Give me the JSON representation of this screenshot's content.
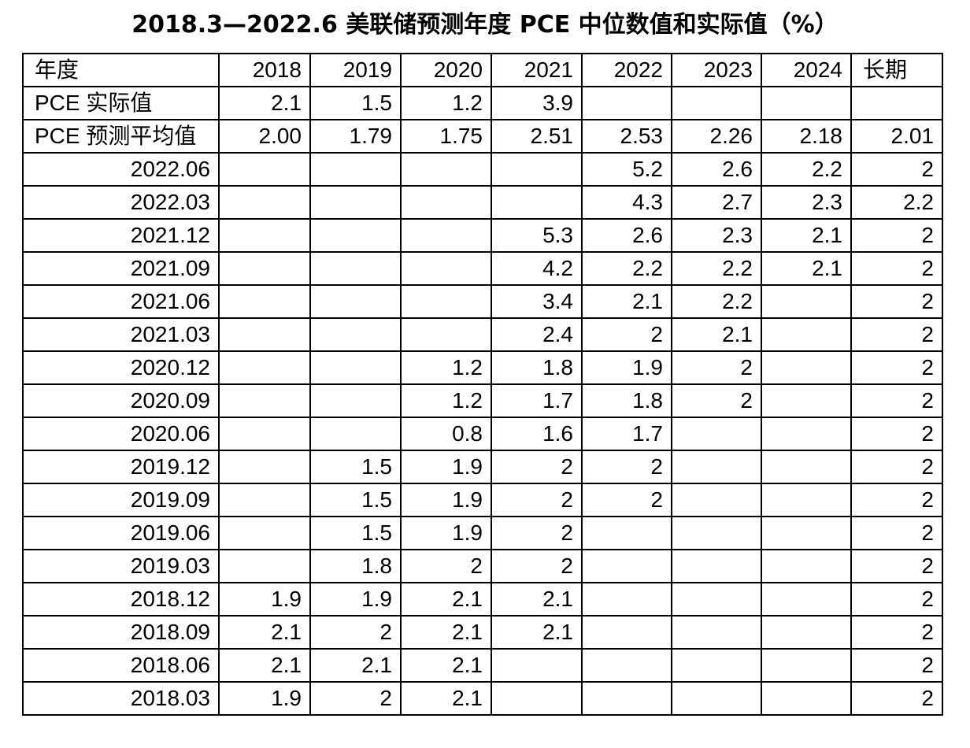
{
  "title": "2018.3—2022.6 美联储预测年度 PCE 中位数值和实际值（%）",
  "table": {
    "header": [
      "年度",
      "2018",
      "2019",
      "2020",
      "2021",
      "2022",
      "2023",
      "2024",
      "长期"
    ],
    "rows": [
      [
        "PCE 实际值",
        "2.1",
        "1.5",
        "1.2",
        "3.9",
        null,
        null,
        null,
        null
      ],
      [
        "PCE 预测平均值",
        "2.00",
        "1.79",
        "1.75",
        "2.51",
        "2.53",
        "2.26",
        "2.18",
        "2.01"
      ],
      [
        "2022.06",
        null,
        null,
        null,
        null,
        "5.2",
        "2.6",
        "2.2",
        "2"
      ],
      [
        "2022.03",
        null,
        null,
        null,
        null,
        "4.3",
        "2.7",
        "2.3",
        "2.2"
      ],
      [
        "2021.12",
        null,
        null,
        null,
        "5.3",
        "2.6",
        "2.3",
        "2.1",
        "2"
      ],
      [
        "2021.09",
        null,
        null,
        null,
        "4.2",
        "2.2",
        "2.2",
        "2.1",
        "2"
      ],
      [
        "2021.06",
        null,
        null,
        null,
        "3.4",
        "2.1",
        "2.2",
        null,
        "2"
      ],
      [
        "2021.03",
        null,
        null,
        null,
        "2.4",
        "2",
        "2.1",
        null,
        "2"
      ],
      [
        "2020.12",
        null,
        null,
        "1.2",
        "1.8",
        "1.9",
        "2",
        null,
        "2"
      ],
      [
        "2020.09",
        null,
        null,
        "1.2",
        "1.7",
        "1.8",
        "2",
        null,
        "2"
      ],
      [
        "2020.06",
        null,
        null,
        "0.8",
        "1.6",
        "1.7",
        null,
        null,
        "2"
      ],
      [
        "2019.12",
        null,
        "1.5",
        "1.9",
        "2",
        "2",
        null,
        null,
        "2"
      ],
      [
        "2019.09",
        null,
        "1.5",
        "1.9",
        "2",
        "2",
        null,
        null,
        "2"
      ],
      [
        "2019.06",
        null,
        "1.5",
        "1.9",
        "2",
        null,
        null,
        null,
        "2"
      ],
      [
        "2019.03",
        null,
        "1.8",
        "2",
        "2",
        null,
        null,
        null,
        "2"
      ],
      [
        "2018.12",
        "1.9",
        "1.9",
        "2.1",
        "2.1",
        null,
        null,
        null,
        "2"
      ],
      [
        "2018.09",
        "2.1",
        "2",
        "2.1",
        "2.1",
        null,
        null,
        null,
        "2"
      ],
      [
        "2018.06",
        "2.1",
        "2.1",
        "2.1",
        null,
        null,
        null,
        null,
        "2"
      ],
      [
        "2018.03",
        "1.9",
        "2",
        "2.1",
        null,
        null,
        null,
        null,
        "2"
      ]
    ]
  }
}
